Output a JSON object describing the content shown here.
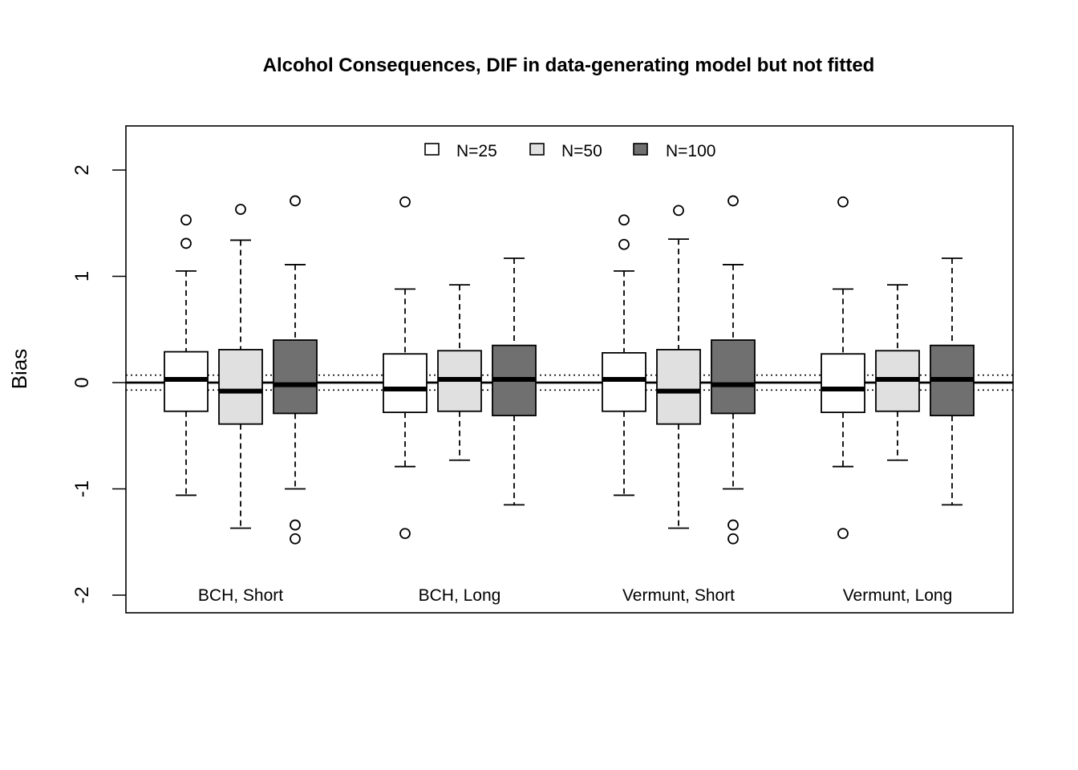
{
  "chart_data": {
    "type": "boxplot",
    "title": "Alcohol Consequences, DIF in data-generating model but not fitted",
    "xlabel": "",
    "ylabel": "Bias",
    "ylim": [
      -2.2,
      2.4
    ],
    "yticks": [
      "-2",
      "-1",
      "0",
      "1",
      "2"
    ],
    "reference_lines": [
      {
        "y": 0,
        "style": "solid"
      },
      {
        "y": 0.07,
        "style": "dotted"
      },
      {
        "y": -0.07,
        "style": "dotted"
      }
    ],
    "legend": {
      "placement": "top-center",
      "entries": [
        {
          "name": "N=25",
          "color": "#ffffff"
        },
        {
          "name": "N=50",
          "color": "#e0e0e0"
        },
        {
          "name": "N=100",
          "color": "#707070"
        }
      ]
    },
    "groups": [
      {
        "label": "BCH, Short",
        "boxes": [
          {
            "series": "N=25",
            "whisker_low": -1.06,
            "q1": -0.27,
            "median": 0.03,
            "q3": 0.29,
            "whisker_high": 1.05,
            "outliers": [
              1.53,
              1.31
            ]
          },
          {
            "series": "N=50",
            "whisker_low": -1.37,
            "q1": -0.39,
            "median": -0.08,
            "q3": 0.31,
            "whisker_high": 1.34,
            "outliers": [
              1.63
            ]
          },
          {
            "series": "N=100",
            "whisker_low": -1.0,
            "q1": -0.29,
            "median": -0.02,
            "q3": 0.4,
            "whisker_high": 1.11,
            "outliers": [
              1.71,
              -1.34,
              -1.47
            ]
          }
        ]
      },
      {
        "label": "BCH, Long",
        "boxes": [
          {
            "series": "N=25",
            "whisker_low": -0.79,
            "q1": -0.28,
            "median": -0.06,
            "q3": 0.27,
            "whisker_high": 0.88,
            "outliers": [
              1.7,
              -1.42
            ]
          },
          {
            "series": "N=50",
            "whisker_low": -0.73,
            "q1": -0.27,
            "median": 0.03,
            "q3": 0.3,
            "whisker_high": 0.92,
            "outliers": []
          },
          {
            "series": "N=100",
            "whisker_low": -1.15,
            "q1": -0.31,
            "median": 0.03,
            "q3": 0.35,
            "whisker_high": 1.17,
            "outliers": []
          }
        ]
      },
      {
        "label": "Vermunt, Short",
        "boxes": [
          {
            "series": "N=25",
            "whisker_low": -1.06,
            "q1": -0.27,
            "median": 0.03,
            "q3": 0.28,
            "whisker_high": 1.05,
            "outliers": [
              1.53,
              1.3
            ]
          },
          {
            "series": "N=50",
            "whisker_low": -1.37,
            "q1": -0.39,
            "median": -0.08,
            "q3": 0.31,
            "whisker_high": 1.35,
            "outliers": [
              1.62
            ]
          },
          {
            "series": "N=100",
            "whisker_low": -1.0,
            "q1": -0.29,
            "median": -0.02,
            "q3": 0.4,
            "whisker_high": 1.11,
            "outliers": [
              1.71,
              -1.34,
              -1.47
            ]
          }
        ]
      },
      {
        "label": "Vermunt, Long",
        "boxes": [
          {
            "series": "N=25",
            "whisker_low": -0.79,
            "q1": -0.28,
            "median": -0.06,
            "q3": 0.27,
            "whisker_high": 0.88,
            "outliers": [
              1.7,
              -1.42
            ]
          },
          {
            "series": "N=50",
            "whisker_low": -0.73,
            "q1": -0.27,
            "median": 0.03,
            "q3": 0.3,
            "whisker_high": 0.92,
            "outliers": []
          },
          {
            "series": "N=100",
            "whisker_low": -1.15,
            "q1": -0.31,
            "median": 0.03,
            "q3": 0.35,
            "whisker_high": 1.17,
            "outliers": []
          }
        ]
      }
    ]
  }
}
